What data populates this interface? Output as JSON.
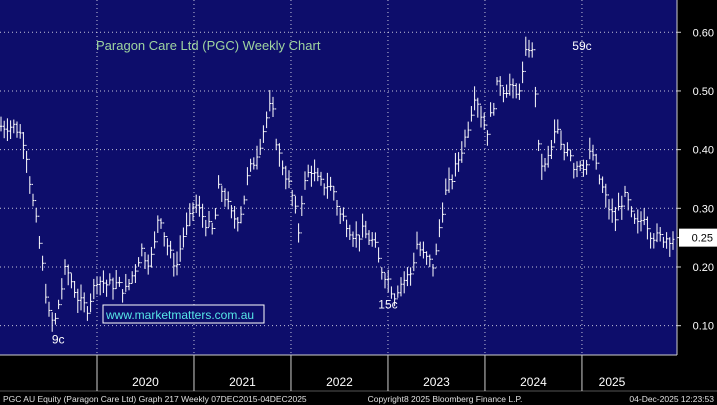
{
  "chart_data": {
    "type": "line",
    "title": "Paragon Care Ltd (PGC) Weekly Chart",
    "style": "weekly OHLC bars",
    "colors": {
      "background": "#0d0d6b",
      "bars": "#ffffff",
      "grid": "#ffffff",
      "title": "#9fd4a0",
      "last_price_box": "#ffffff"
    },
    "grid": "dotted",
    "x_ticks": [
      "2020",
      "2021",
      "2022",
      "2023",
      "2024",
      "2025"
    ],
    "y_ticks": [
      "0.10",
      "0.20",
      "0.25",
      "0.30",
      "0.40",
      "0.50",
      "0.60"
    ],
    "ylim": [
      0.05,
      0.655
    ],
    "last_price": "0.25",
    "annotations": [
      {
        "text": "9c",
        "x": 2019.6,
        "y": 0.09
      },
      {
        "text": "15c",
        "x": 2023.0,
        "y": 0.15
      },
      {
        "text": "59c",
        "x": 2025.0,
        "y": 0.59
      }
    ],
    "watermark": "www.marketmatters.com.au",
    "x": [
      2019.08,
      2019.15,
      2019.2,
      2019.26,
      2019.32,
      2019.38,
      2019.44,
      2019.5,
      2019.56,
      2019.62,
      2019.68,
      2019.75,
      2019.82,
      2019.9,
      2020.0,
      2020.1,
      2020.2,
      2020.3,
      2020.4,
      2020.46,
      2020.52,
      2020.58,
      2020.64,
      2020.7,
      2020.76,
      2020.82,
      2020.88,
      2020.94,
      2021.0,
      2021.08,
      2021.14,
      2021.2,
      2021.26,
      2021.32,
      2021.38,
      2021.44,
      2021.5,
      2021.56,
      2021.62,
      2021.68,
      2021.74,
      2021.8,
      2021.86,
      2021.92,
      2022.0,
      2022.04,
      2022.08,
      2022.12,
      2022.16,
      2022.2,
      2022.26,
      2022.32,
      2022.38,
      2022.44,
      2022.5,
      2022.56,
      2022.62,
      2022.68,
      2022.74,
      2022.8,
      2022.86,
      2022.92,
      2023.0,
      2023.06,
      2023.12,
      2023.18,
      2023.24,
      2023.3,
      2023.36,
      2023.42,
      2023.48,
      2023.54,
      2023.6,
      2023.66,
      2023.72,
      2023.78,
      2023.84,
      2023.9,
      2023.96,
      2024.02,
      2024.08,
      2024.14,
      2024.2,
      2024.26,
      2024.32,
      2024.38,
      2024.44,
      2024.5,
      2024.56,
      2024.62,
      2024.68,
      2024.74,
      2024.8,
      2024.86,
      2024.92,
      2024.98,
      2025.04,
      2025.1,
      2025.16,
      2025.22,
      2025.28,
      2025.34,
      2025.4,
      2025.46,
      2025.52,
      2025.58,
      2025.64,
      2025.7,
      2025.76,
      2025.82,
      2025.88,
      2025.92,
      2025.96
    ],
    "close": [
      0.44,
      0.44,
      0.43,
      0.41,
      0.33,
      0.27,
      0.2,
      0.12,
      0.1,
      0.15,
      0.2,
      0.17,
      0.14,
      0.13,
      0.18,
      0.17,
      0.17,
      0.16,
      0.2,
      0.23,
      0.21,
      0.22,
      0.3,
      0.25,
      0.22,
      0.2,
      0.25,
      0.27,
      0.31,
      0.29,
      0.27,
      0.26,
      0.34,
      0.32,
      0.29,
      0.28,
      0.3,
      0.36,
      0.38,
      0.41,
      0.45,
      0.48,
      0.4,
      0.37,
      0.33,
      0.3,
      0.26,
      0.33,
      0.35,
      0.37,
      0.35,
      0.34,
      0.34,
      0.33,
      0.29,
      0.28,
      0.26,
      0.25,
      0.26,
      0.25,
      0.24,
      0.2,
      0.18,
      0.15,
      0.17,
      0.18,
      0.19,
      0.24,
      0.22,
      0.21,
      0.2,
      0.28,
      0.33,
      0.35,
      0.38,
      0.41,
      0.45,
      0.5,
      0.46,
      0.43,
      0.47,
      0.52,
      0.5,
      0.51,
      0.49,
      0.52,
      0.58,
      0.56,
      0.38,
      0.37,
      0.4,
      0.44,
      0.39,
      0.41,
      0.37,
      0.38,
      0.37,
      0.4,
      0.36,
      0.33,
      0.3,
      0.28,
      0.31,
      0.32,
      0.28,
      0.27,
      0.29,
      0.26,
      0.25,
      0.25,
      0.25,
      0.25,
      0.25
    ],
    "footer_left": "PGC AU Equity (Paragon Care Ltd) Graph 217 Weekly 07DEC2015-04DEC2025",
    "footer_center": "Copyright8 2025 Bloomberg Finance L.P.",
    "footer_right": "04-Dec-2025 12:23:53"
  }
}
